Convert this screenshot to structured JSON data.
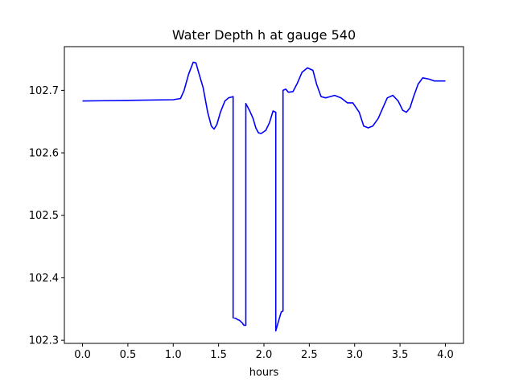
{
  "chart_data": {
    "type": "line",
    "title": "Water Depth h at gauge 540",
    "xlabel": "hours",
    "ylabel": "",
    "xlim": [
      -0.2,
      4.2
    ],
    "ylim": [
      102.295,
      102.77
    ],
    "xticks": [
      0.0,
      0.5,
      1.0,
      1.5,
      2.0,
      2.5,
      3.0,
      3.5,
      4.0
    ],
    "xtick_labels": [
      "0.0",
      "0.5",
      "1.0",
      "1.5",
      "2.0",
      "2.5",
      "3.0",
      "3.5",
      "4.0"
    ],
    "yticks": [
      102.3,
      102.4,
      102.5,
      102.6,
      102.7
    ],
    "ytick_labels": [
      "102.3",
      "102.4",
      "102.5",
      "102.6",
      "102.7"
    ],
    "grid": false,
    "series": [
      {
        "color": "#0000ff",
        "x": [
          0.0,
          0.5,
          1.0,
          1.08,
          1.12,
          1.17,
          1.22,
          1.25,
          1.28,
          1.33,
          1.38,
          1.42,
          1.45,
          1.48,
          1.52,
          1.57,
          1.61,
          1.66,
          1.66,
          1.69,
          1.71,
          1.73,
          1.76,
          1.78,
          1.8,
          1.8,
          1.84,
          1.88,
          1.91,
          1.94,
          1.97,
          2.02,
          2.06,
          2.1,
          2.13,
          2.13,
          2.16,
          2.19,
          2.21,
          2.21,
          2.24,
          2.27,
          2.32,
          2.37,
          2.42,
          2.48,
          2.54,
          2.58,
          2.63,
          2.68,
          2.73,
          2.78,
          2.85,
          2.92,
          2.98,
          3.05,
          3.1,
          3.15,
          3.2,
          3.26,
          3.32,
          3.36,
          3.42,
          3.48,
          3.53,
          3.57,
          3.61,
          3.65,
          3.7,
          3.75,
          3.82,
          3.88,
          3.93,
          3.97,
          4.0
        ],
        "y": [
          102.683,
          102.684,
          102.685,
          102.687,
          102.7,
          102.726,
          102.745,
          102.744,
          102.729,
          102.704,
          102.665,
          102.643,
          102.638,
          102.645,
          102.665,
          102.683,
          102.688,
          102.69,
          102.336,
          102.335,
          102.333,
          102.332,
          102.328,
          102.324,
          102.324,
          102.679,
          102.668,
          102.655,
          102.64,
          102.632,
          102.631,
          102.636,
          102.648,
          102.667,
          102.665,
          102.315,
          102.33,
          102.345,
          102.347,
          102.7,
          102.702,
          102.697,
          102.698,
          102.712,
          102.729,
          102.736,
          102.732,
          102.71,
          102.69,
          102.688,
          102.69,
          102.692,
          102.688,
          102.68,
          102.68,
          102.665,
          102.643,
          102.64,
          102.643,
          102.655,
          102.675,
          102.688,
          102.692,
          102.683,
          102.668,
          102.665,
          102.672,
          102.69,
          102.71,
          102.72,
          102.718,
          102.715,
          102.715,
          102.715,
          102.715
        ]
      }
    ]
  }
}
